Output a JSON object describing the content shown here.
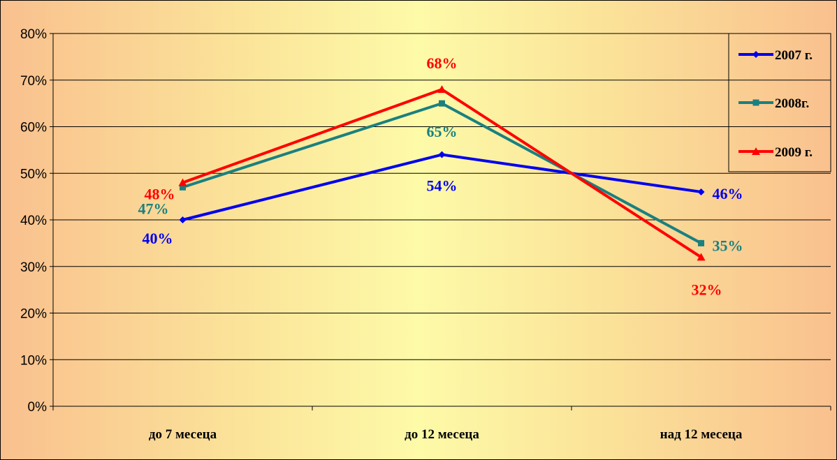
{
  "chart_data": {
    "type": "line",
    "categories": [
      "до 7 месеца",
      "до 12 месеца",
      "над 12 месеца"
    ],
    "series": [
      {
        "name": "2007 г.",
        "values": [
          40,
          54,
          46
        ],
        "labels": [
          "40%",
          "54%",
          "46%"
        ],
        "color": "#0000ee",
        "marker": "diamond"
      },
      {
        "name": "2008г.",
        "values": [
          47,
          65,
          35
        ],
        "labels": [
          "47%",
          "65%",
          "35%"
        ],
        "color": "#1a8080",
        "marker": "square"
      },
      {
        "name": "2009 г.",
        "values": [
          48,
          68,
          32
        ],
        "labels": [
          "48%",
          "68%",
          "32%"
        ],
        "color": "#ff0000",
        "marker": "triangle"
      }
    ],
    "ylim": [
      0,
      80
    ],
    "yticks": [
      "0%",
      "10%",
      "20%",
      "30%",
      "40%",
      "50%",
      "60%",
      "70%",
      "80%"
    ],
    "grid": true,
    "legend": "right",
    "title": "",
    "xlabel": "",
    "ylabel": ""
  }
}
